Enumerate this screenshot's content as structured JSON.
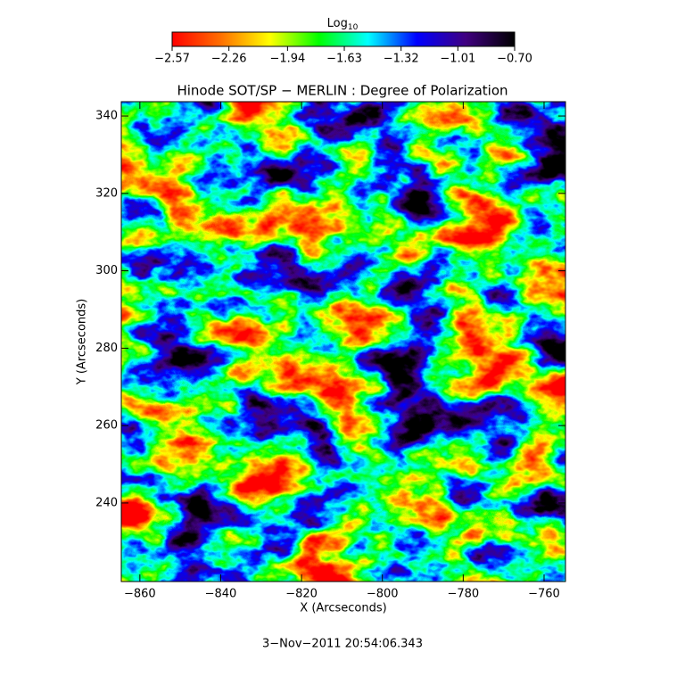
{
  "chart_data": {
    "type": "image",
    "title": "Hinode SOT/SP − MERLIN : Degree of Polarization",
    "x_label": "X (Arcseconds)",
    "y_label": "Y (Arcseconds)",
    "footer": "3−Nov−2011 20:54:06.343",
    "xlim": [
      -864.6,
      -754.7
    ],
    "ylim": [
      219.7,
      343.7
    ],
    "xticks": [
      {
        "value": -860,
        "label": "−860"
      },
      {
        "value": -840,
        "label": "−840"
      },
      {
        "value": -820,
        "label": "−820"
      },
      {
        "value": -800,
        "label": "−800"
      },
      {
        "value": -780,
        "label": "−780"
      },
      {
        "value": -760,
        "label": "−760"
      }
    ],
    "yticks": [
      240,
      260,
      280,
      300,
      320,
      340
    ],
    "colorbar": {
      "title": "Log",
      "title_subscript": "10",
      "lim": [
        -2.57,
        -0.7
      ],
      "ticks": [
        {
          "value": -2.57,
          "label": "−2.57"
        },
        {
          "value": -2.26,
          "label": "−2.26"
        },
        {
          "value": -1.94,
          "label": "−1.94"
        },
        {
          "value": -1.63,
          "label": "−1.63"
        },
        {
          "value": -1.32,
          "label": "−1.32"
        },
        {
          "value": -1.01,
          "label": "−1.01"
        },
        {
          "value": -0.7,
          "label": "−0.70"
        }
      ],
      "colormap": [
        "#ff0000",
        "#ff7000",
        "#ffff00",
        "#00ff00",
        "#00ffff",
        "#0000ff",
        "#400080",
        "#000000"
      ]
    }
  }
}
